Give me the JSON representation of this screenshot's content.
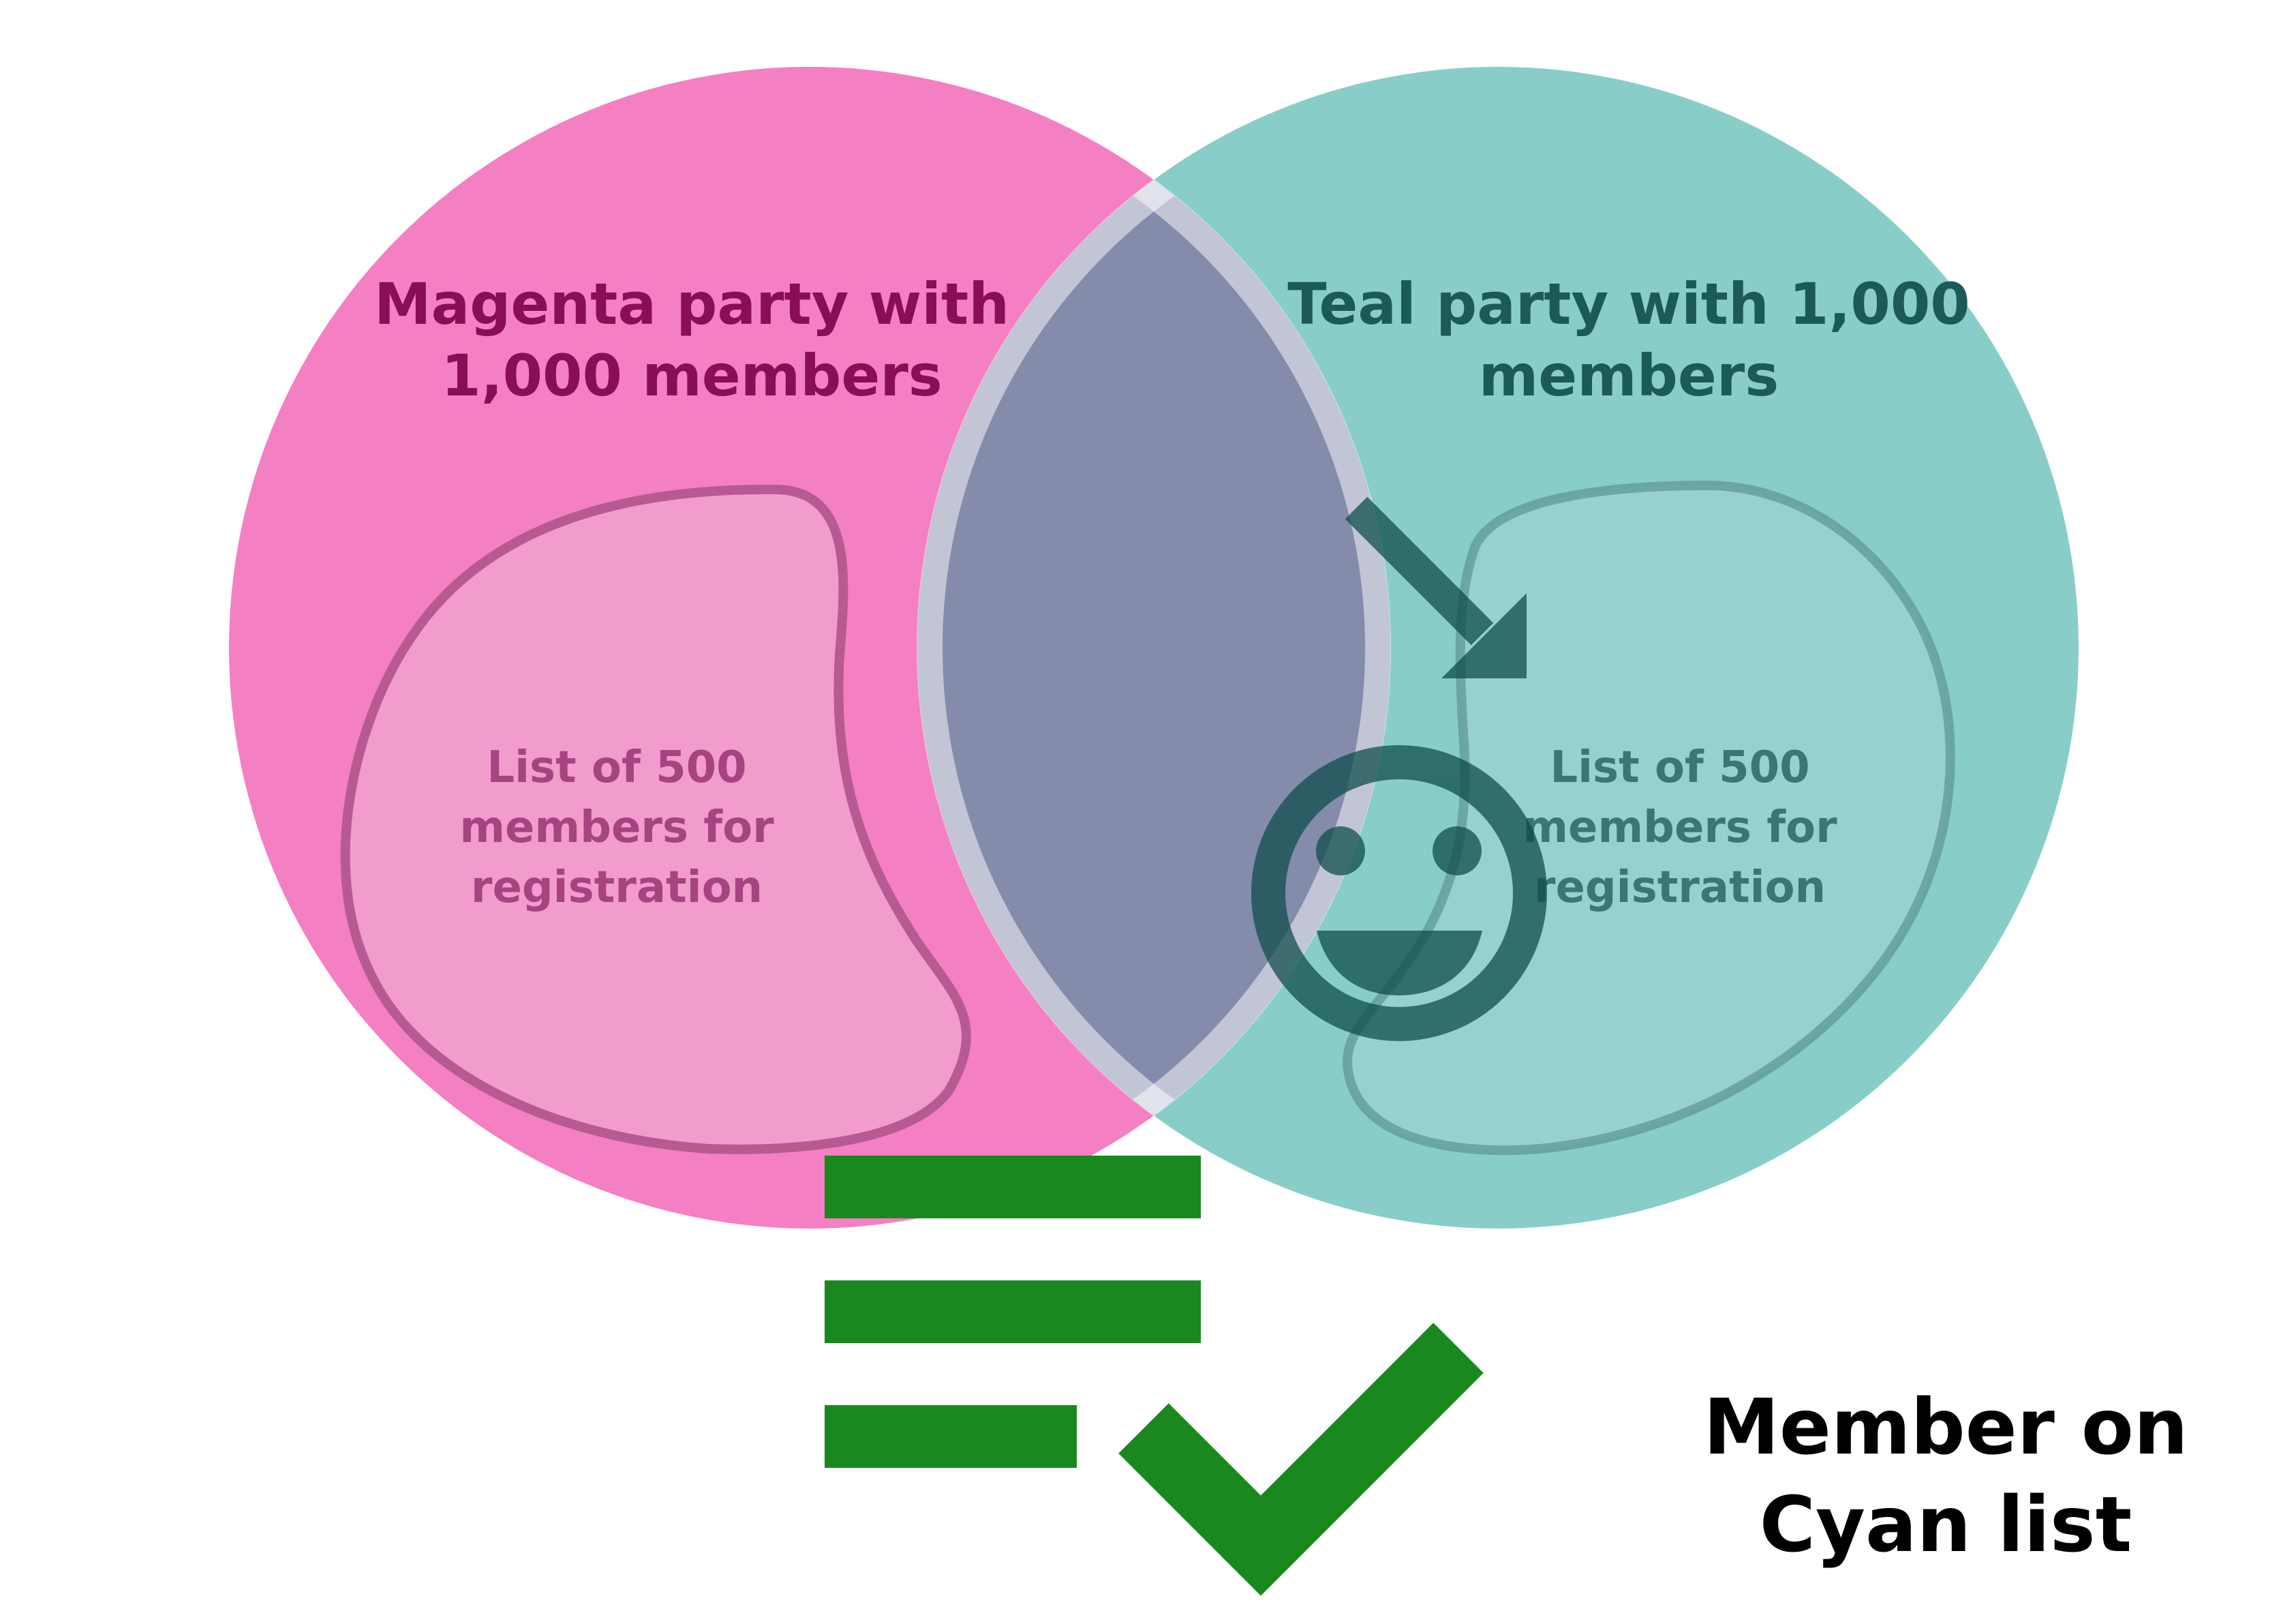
{
  "magenta_party": {
    "title_lines": [
      "Magenta party with",
      "1,000 members"
    ],
    "list_lines": [
      "List of 500",
      "members for",
      "registration"
    ]
  },
  "teal_party": {
    "title_lines": [
      "Teal party with 1,000",
      "members"
    ],
    "list_lines": [
      "List of 500",
      "members for",
      "registration"
    ]
  },
  "result_label_lines": [
    "Member on",
    "Cyan list"
  ],
  "icons": {
    "member": "smiley-face-icon",
    "pointer": "arrow-down-right-icon",
    "list": "list-lines-icon",
    "check": "checkmark-icon"
  },
  "colors": {
    "magenta_circle": "#f47fc3",
    "magenta_title": "#8a0d57",
    "magenta_list_fill": "#f29ccd",
    "magenta_list_stroke": "#b85a92",
    "magenta_list_text": "#a64482",
    "teal_circle": "#89cdc9",
    "teal_title": "#1c5a5a",
    "teal_list_fill": "#a3d5d1",
    "teal_list_stroke": "#5f9894",
    "teal_list_text": "#3a7773",
    "overlap": "#848bab",
    "overlap_ring": "rgba(255,255,255,0.5)",
    "icon_dark": "#0b4a49",
    "check_green": "#19891f",
    "result_text": "#000000"
  }
}
